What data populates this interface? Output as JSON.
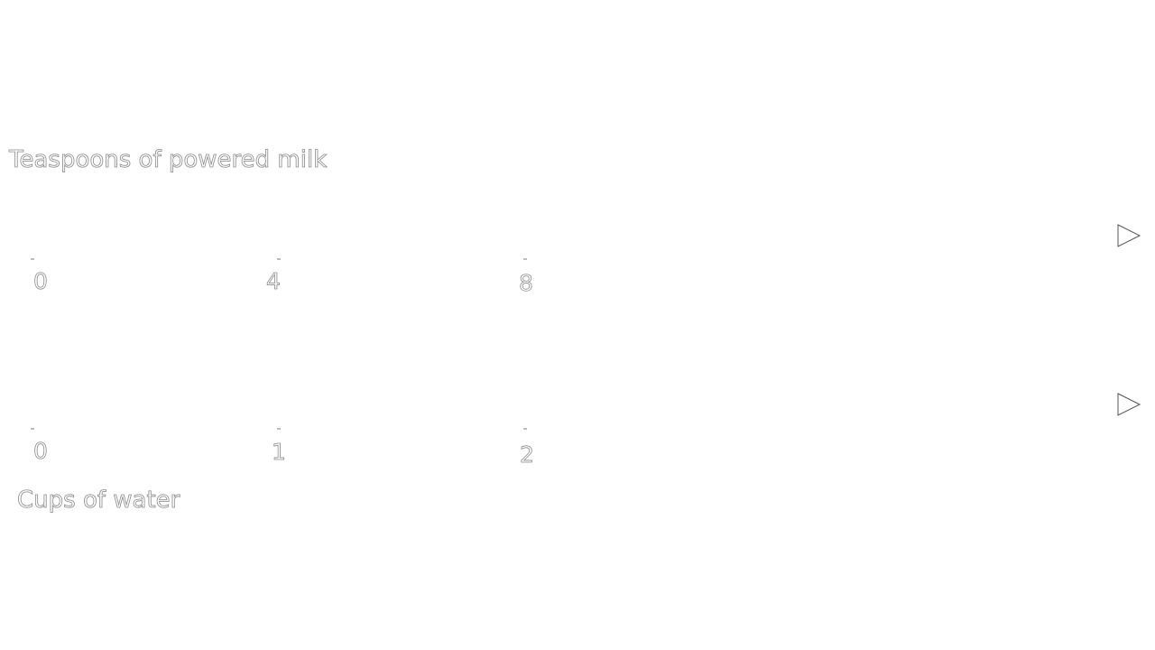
{
  "diagram": {
    "top_line": {
      "label": "Teaspoons of powered milk",
      "ticks": [
        "0",
        "4",
        "8"
      ]
    },
    "bottom_line": {
      "label": "Cups of water",
      "ticks": [
        "0",
        "1",
        "2"
      ]
    }
  }
}
